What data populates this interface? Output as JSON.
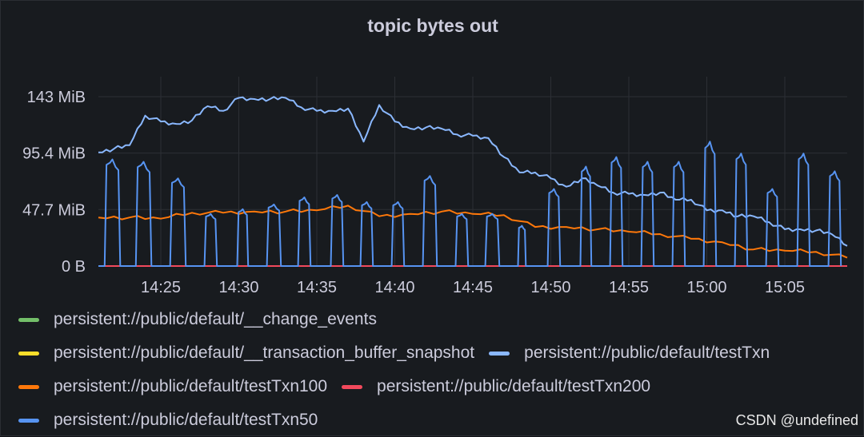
{
  "panel": {
    "title": "topic bytes out"
  },
  "watermark": "CSDN @undefined",
  "legend": {
    "rows": [
      [
        {
          "name": "persistent://public/default/__change_events",
          "color": "#73bf69"
        }
      ],
      [
        {
          "name": "persistent://public/default/__transaction_buffer_snapshot",
          "color": "#fade2a"
        },
        {
          "name": "persistent://public/default/testTxn",
          "color": "#8ab8ff"
        }
      ],
      [
        {
          "name": "persistent://public/default/testTxn100",
          "color": "#ff780a"
        },
        {
          "name": "persistent://public/default/testTxn200",
          "color": "#f2495c"
        }
      ],
      [
        {
          "name": "persistent://public/default/testTxn50",
          "color": "#5794f2"
        }
      ]
    ]
  },
  "chart_data": {
    "type": "line",
    "title": "topic bytes out",
    "ylabel": "",
    "xlabel": "",
    "x_range": [
      "14:21",
      "15:09"
    ],
    "ylim": [
      0,
      143
    ],
    "y_unit": "MiB",
    "y_ticks": [
      {
        "value": 0,
        "label": "0 B"
      },
      {
        "value": 47.7,
        "label": "47.7 MiB"
      },
      {
        "value": 95.4,
        "label": "95.4 MiB"
      },
      {
        "value": 143,
        "label": "143 MiB"
      }
    ],
    "x_ticks": [
      "14:25",
      "14:30",
      "14:35",
      "14:40",
      "14:45",
      "14:50",
      "14:55",
      "15:00",
      "15:05"
    ],
    "grid": true,
    "legend_position": "bottom",
    "series": [
      {
        "name": "persistent://public/default/testTxn",
        "color": "#8ab8ff",
        "x": [
          "14:21",
          "14:22",
          "14:23",
          "14:24",
          "14:25",
          "14:26",
          "14:27",
          "14:28",
          "14:29",
          "14:30",
          "14:31",
          "14:32",
          "14:33",
          "14:34",
          "14:35",
          "14:36",
          "14:37",
          "14:38",
          "14:39",
          "14:40",
          "14:41",
          "14:42",
          "14:43",
          "14:44",
          "14:45",
          "14:46",
          "14:47",
          "14:48",
          "14:49",
          "14:50",
          "14:51",
          "14:52",
          "14:53",
          "14:54",
          "14:55",
          "14:56",
          "14:57",
          "14:58",
          "14:59",
          "15:00",
          "15:01",
          "15:02",
          "15:03",
          "15:04",
          "15:05",
          "15:06",
          "15:07",
          "15:08",
          "15:09"
        ],
        "values": [
          96,
          99,
          102,
          127,
          122,
          120,
          123,
          135,
          131,
          142,
          141,
          141,
          142,
          134,
          131,
          131,
          133,
          105,
          136,
          122,
          116,
          117,
          116,
          111,
          110,
          108,
          92,
          79,
          79,
          74,
          67,
          74,
          68,
          62,
          61,
          60,
          62,
          56,
          56,
          47,
          47,
          42,
          42,
          37,
          31,
          31,
          30,
          27,
          17
        ]
      },
      {
        "name": "persistent://public/default/testTxn100",
        "color": "#ff780a",
        "x": [
          "14:21",
          "14:23",
          "14:25",
          "14:27",
          "14:29",
          "14:31",
          "14:33",
          "14:35",
          "14:37",
          "14:39",
          "14:41",
          "14:43",
          "14:45",
          "14:47",
          "14:49",
          "14:51",
          "14:53",
          "14:55",
          "14:57",
          "14:59",
          "15:01",
          "15:03",
          "15:05",
          "15:07",
          "15:09"
        ],
        "values": [
          41,
          41,
          40,
          45,
          45,
          46,
          46,
          47,
          51,
          42,
          44,
          46,
          44,
          43,
          33,
          33,
          31,
          29,
          27,
          23,
          20,
          14,
          13,
          12,
          7
        ]
      },
      {
        "name": "persistent://public/default/testTxn200",
        "color": "#f2495c",
        "x": [
          "14:21",
          "15:09"
        ],
        "values": [
          0,
          0
        ]
      },
      {
        "name": "persistent://public/default/testTxn50",
        "color": "#5794f2",
        "pulses": [
          {
            "start": "14:21.4",
            "end": "14:22.4",
            "peak": 90
          },
          {
            "start": "14:23.4",
            "end": "14:24.4",
            "peak": 88
          },
          {
            "start": "14:25.6",
            "end": "14:26.6",
            "peak": 74
          },
          {
            "start": "14:27.8",
            "end": "14:28.6",
            "peak": 44
          },
          {
            "start": "14:29.9",
            "end": "14:30.6",
            "peak": 48
          },
          {
            "start": "14:31.8",
            "end": "14:32.7",
            "peak": 52
          },
          {
            "start": "14:33.8",
            "end": "14:34.6",
            "peak": 58
          },
          {
            "start": "14:35.9",
            "end": "14:36.7",
            "peak": 60
          },
          {
            "start": "14:37.8",
            "end": "14:38.6",
            "peak": 54
          },
          {
            "start": "14:39.8",
            "end": "14:40.6",
            "peak": 54
          },
          {
            "start": "14:41.8",
            "end": "14:42.7",
            "peak": 76
          },
          {
            "start": "14:43.9",
            "end": "14:44.7",
            "peak": 44
          },
          {
            "start": "14:45.8",
            "end": "14:46.7",
            "peak": 44
          },
          {
            "start": "14:47.9",
            "end": "14:48.4",
            "peak": 34
          },
          {
            "start": "14:49.8",
            "end": "14:50.6",
            "peak": 65
          },
          {
            "start": "14:51.9",
            "end": "14:52.6",
            "peak": 84
          },
          {
            "start": "14:53.8",
            "end": "14:54.6",
            "peak": 92
          },
          {
            "start": "14:55.8",
            "end": "14:56.6",
            "peak": 88
          },
          {
            "start": "14:57.8",
            "end": "14:58.6",
            "peak": 88
          },
          {
            "start": "14:59.8",
            "end": "15:00.6",
            "peak": 105
          },
          {
            "start": "15:01.8",
            "end": "15:02.6",
            "peak": 95
          },
          {
            "start": "15:03.8",
            "end": "15:04.6",
            "peak": 65
          },
          {
            "start": "15:05.8",
            "end": "15:06.6",
            "peak": 95
          },
          {
            "start": "15:07.8",
            "end": "15:08.6",
            "peak": 80
          }
        ]
      }
    ]
  }
}
